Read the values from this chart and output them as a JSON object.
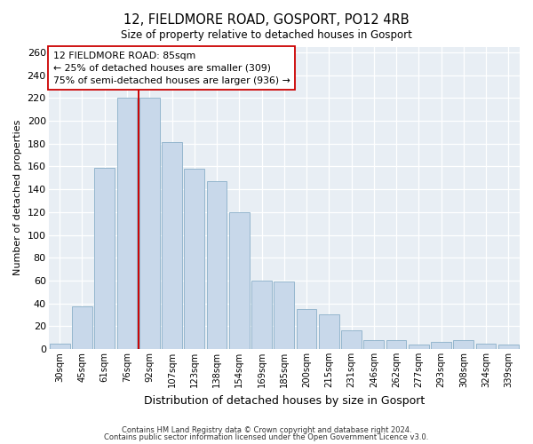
{
  "title": "12, FIELDMORE ROAD, GOSPORT, PO12 4RB",
  "subtitle": "Size of property relative to detached houses in Gosport",
  "xlabel": "Distribution of detached houses by size in Gosport",
  "ylabel": "Number of detached properties",
  "bar_labels": [
    "30sqm",
    "45sqm",
    "61sqm",
    "76sqm",
    "92sqm",
    "107sqm",
    "123sqm",
    "138sqm",
    "154sqm",
    "169sqm",
    "185sqm",
    "200sqm",
    "215sqm",
    "231sqm",
    "246sqm",
    "262sqm",
    "277sqm",
    "293sqm",
    "308sqm",
    "324sqm",
    "339sqm"
  ],
  "bar_values": [
    5,
    37,
    159,
    220,
    220,
    181,
    158,
    147,
    120,
    60,
    59,
    35,
    30,
    16,
    8,
    8,
    4,
    6,
    8,
    5,
    4
  ],
  "bar_color": "#c8d8ea",
  "bar_edge_color": "#8aafc8",
  "vline_color": "#cc0000",
  "vline_pos": 3.5,
  "ylim": [
    0,
    265
  ],
  "yticks": [
    0,
    20,
    40,
    60,
    80,
    100,
    120,
    140,
    160,
    180,
    200,
    220,
    240,
    260
  ],
  "annotation_text": "12 FIELDMORE ROAD: 85sqm\n← 25% of detached houses are smaller (309)\n75% of semi-detached houses are larger (936) →",
  "footer1": "Contains HM Land Registry data © Crown copyright and database right 2024.",
  "footer2": "Contains public sector information licensed under the Open Government Licence v3.0.",
  "bg_color": "#e8eef4",
  "fig_bg": "#ffffff"
}
